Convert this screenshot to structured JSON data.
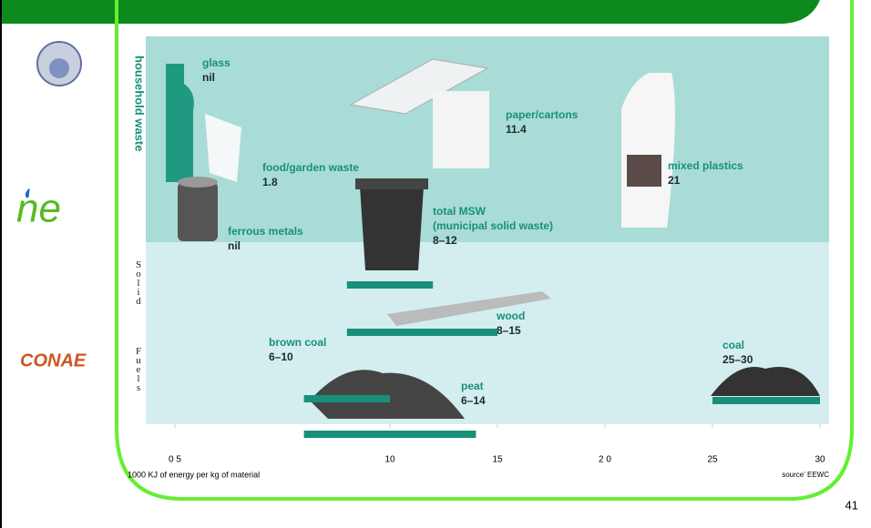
{
  "logos": {
    "middle": "ne",
    "bottom": "CONAE"
  },
  "page_number": "41",
  "chart_data": {
    "type": "range",
    "side_labels": {
      "household": "household waste",
      "solid_1": "Solid",
      "solid_2": "Fuels"
    },
    "items": [
      {
        "name": [
          "glass"
        ],
        "label": "nil"
      },
      {
        "name": [
          "paper/cartons"
        ],
        "label": "11.4"
      },
      {
        "name": [
          "food/garden waste"
        ],
        "label": "1.8"
      },
      {
        "name": [
          "mixed plastics"
        ],
        "label": "21"
      },
      {
        "name": [
          "ferrous metals"
        ],
        "label": "nil"
      }
    ],
    "ranges": [
      {
        "name": [
          "total MSW",
          "(municipal solid waste)"
        ],
        "low": 8,
        "high": 12,
        "label": "8–12"
      },
      {
        "name": [
          "wood"
        ],
        "low": 8,
        "high": 15,
        "label": "8–15"
      },
      {
        "name": [
          "brown coal"
        ],
        "low": 6,
        "high": 10,
        "label": "6–10"
      },
      {
        "name": [
          "peat"
        ],
        "low": 6,
        "high": 14,
        "label": "6–14"
      },
      {
        "name": [
          "coal"
        ],
        "low": 25,
        "high": 30,
        "label": "25–30"
      }
    ],
    "color": "#17907a",
    "xlim": [
      0,
      30
    ],
    "xticks": [
      {
        "value": 0,
        "label": "0 5"
      },
      10,
      15,
      {
        "value": 20,
        "label": "2 0"
      },
      25,
      30
    ],
    "xlabel": "1000 KJ of energy per kg of material",
    "source": "source' EEWC"
  }
}
